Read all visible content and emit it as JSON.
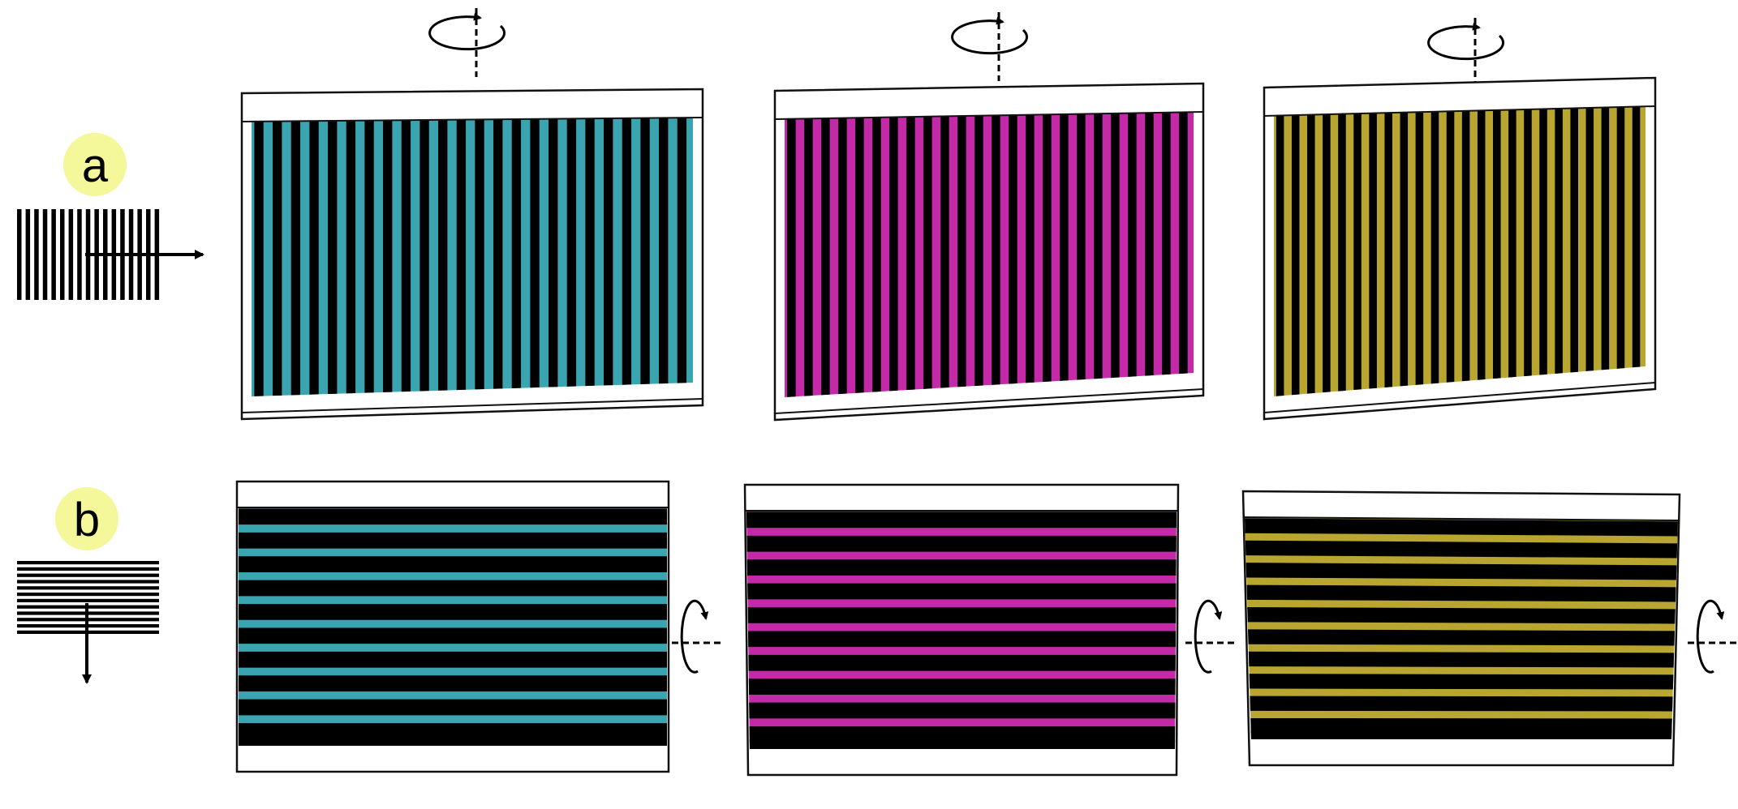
{
  "rows": [
    {
      "label": "a",
      "orientation": "vertical",
      "scan_direction": "right",
      "rotation_axis": "vertical",
      "panels": [
        {
          "tint": "#3aa5b0"
        },
        {
          "tint": "#c42aa8"
        },
        {
          "tint": "#b9a631"
        }
      ]
    },
    {
      "label": "b",
      "orientation": "horizontal",
      "scan_direction": "down",
      "rotation_axis": "horizontal",
      "panels": [
        {
          "tint": "#3aa5b0"
        },
        {
          "tint": "#c42aa8"
        },
        {
          "tint": "#b9a631"
        }
      ]
    }
  ],
  "colors": {
    "badge_fill": "#f4f79a",
    "bar": "#000000",
    "frame": "#ffffff",
    "frame_stroke": "#111111"
  },
  "icons": {
    "rotation_vertical": "rotate-about-vertical-axis-icon",
    "rotation_horizontal": "rotate-about-horizontal-axis-icon",
    "scan_arrow_right": "arrow-right-icon",
    "scan_arrow_down": "arrow-down-icon"
  }
}
